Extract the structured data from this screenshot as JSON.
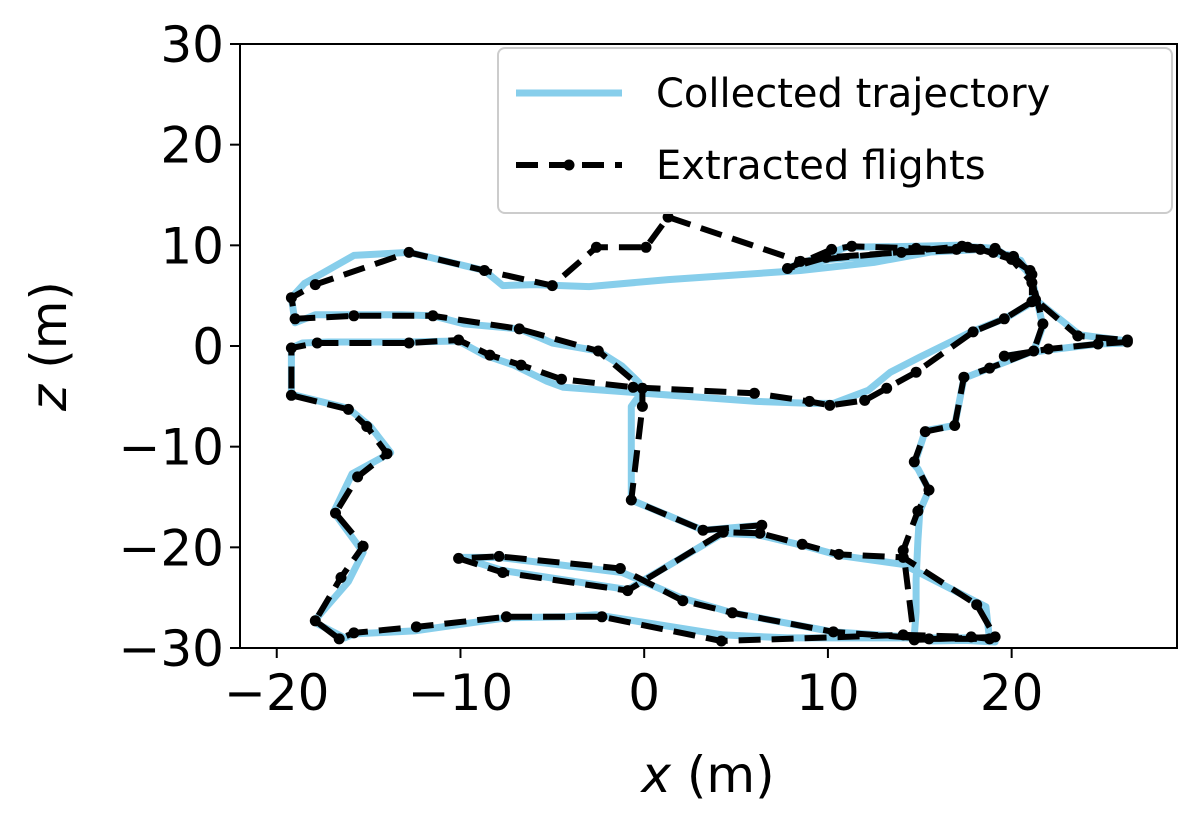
{
  "chart_data": {
    "type": "line",
    "xlabel": "x (m)",
    "ylabel": "z (m)",
    "xlim": [
      -22,
      29
    ],
    "ylim": [
      -30,
      30
    ],
    "xticks": [
      -20,
      -10,
      0,
      10,
      20
    ],
    "yticks": [
      -30,
      -20,
      -10,
      0,
      10,
      20,
      30
    ],
    "xtick_labels": [
      "−20",
      "−10",
      "0",
      "10",
      "20"
    ],
    "ytick_labels": [
      "−30",
      "−20",
      "−10",
      "0",
      "10",
      "20",
      "30"
    ],
    "grid": false,
    "legend_position": "top-right",
    "series": [
      {
        "name": "Collected trajectory",
        "color": "#87ceeb",
        "style": "solid",
        "x": [
          6.4,
          3.2,
          -0.7,
          -0.7,
          -0.7,
          -0.1,
          -0.3,
          -1.2,
          -2.5,
          -5.0,
          -6.8,
          -9.8,
          -11.5,
          -13.2,
          -17.9,
          -19.0,
          -19.2,
          -18.5,
          -15.8,
          -12.8,
          -8.7,
          -7.7,
          -6.0,
          -3.0,
          1.3,
          8.5,
          12.5,
          17.3,
          19.1,
          21.0,
          21.7,
          21.2,
          18.8,
          17.4,
          16.9,
          15.3,
          14.7,
          14.9,
          15.5,
          15.0,
          14.9,
          14.8,
          14.8,
          14.7,
          15.6,
          18.8,
          18.6,
          14.1,
          10.6,
          8.6,
          6.3,
          4.3,
          -0.9,
          -7.7,
          -10.0,
          -7.9,
          -1.2,
          2.0,
          4.8,
          10.3,
          16.0,
          19.1,
          17.9,
          14.5,
          7.8,
          4.3,
          -2.6,
          -4.2,
          -7.5,
          -12.5,
          -15.8,
          -16.3,
          -18.0,
          -16.1,
          -15.3,
          -16.9,
          -15.9,
          -13.8,
          -14.9,
          -16.1,
          -19.2,
          -19.2,
          -18.6,
          -17.2,
          -12.9,
          -10.1,
          -8.7,
          -7.1,
          -5.3,
          -4.4,
          -0.7,
          6.1,
          9.1,
          10.3,
          12.2,
          13.4,
          15.0,
          17.8,
          19.6,
          21.1,
          21.2,
          20.5,
          18.4,
          14.1,
          10.1,
          7.9,
          10.4,
          11.0,
          14.8,
          17.0,
          17.7,
          19.1,
          20.0,
          21.0,
          21.3,
          23.7,
          26.3,
          26.3,
          24.7,
          22.0,
          19.7
        ],
        "y": [
          -17.8,
          -18.3,
          -15.3,
          -9.8,
          -6.0,
          -4.5,
          -3.6,
          -2.0,
          -0.5,
          0.3,
          1.7,
          2.2,
          3.0,
          3.1,
          3.1,
          2.3,
          4.8,
          6.2,
          9.0,
          9.3,
          7.5,
          6.0,
          6.1,
          5.9,
          6.6,
          7.5,
          8.3,
          9.9,
          9.7,
          7.5,
          2.0,
          -0.5,
          -2.2,
          -3.2,
          -7.9,
          -8.4,
          -11.8,
          -12.2,
          -14.3,
          -16.4,
          -19.3,
          -23.2,
          -26.4,
          -28.8,
          -29.3,
          -29.2,
          -25.9,
          -21.7,
          -20.8,
          -19.8,
          -18.8,
          -18.6,
          -24.2,
          -22.3,
          -21.0,
          -21.0,
          -22.5,
          -25.0,
          -26.5,
          -28.4,
          -29.1,
          -29.4,
          -29.0,
          -29.0,
          -29.0,
          -28.7,
          -26.7,
          -26.9,
          -27.0,
          -28.3,
          -28.6,
          -29.0,
          -27.4,
          -23.4,
          -20.5,
          -16.5,
          -12.7,
          -10.6,
          -8.0,
          -6.2,
          -4.8,
          -0.2,
          0.3,
          0.4,
          0.4,
          0.5,
          -0.9,
          -1.9,
          -3.5,
          -4.1,
          -4.6,
          -5.5,
          -5.7,
          -5.7,
          -4.4,
          -2.6,
          -1.1,
          1.4,
          2.7,
          4.3,
          6.2,
          8.5,
          9.6,
          9.2,
          8.6,
          7.8,
          9.4,
          9.8,
          9.9,
          10.0,
          9.9,
          9.3,
          9.0,
          7.1,
          4.6,
          1.1,
          0.5,
          0.3,
          0.2,
          -0.4,
          -1.0
        ]
      },
      {
        "name": "Extracted flights",
        "color": "#000000",
        "style": "dashed",
        "x": [
          6.4,
          3.2,
          -0.7,
          -0.1,
          -0.1,
          -2.5,
          -6.8,
          -11.5,
          -15.8,
          -19.0,
          -19.2,
          -17.9,
          -12.8,
          -8.7,
          -5.0,
          -2.6,
          0.1,
          1.3,
          8.5,
          17.3,
          19.1,
          21.0,
          21.7,
          21.2,
          18.8,
          17.4,
          16.9,
          15.3,
          14.7,
          15.5,
          14.9,
          14.1,
          14.7,
          19.1,
          18.1,
          14.1,
          10.6,
          8.6,
          6.3,
          4.3,
          -0.9,
          -7.7,
          -10.1,
          -7.9,
          -1.3,
          2.1,
          4.8,
          10.3,
          15.5,
          18.8,
          17.8,
          14.1,
          4.2,
          -2.3,
          -7.5,
          -12.4,
          -15.8,
          -16.6,
          -17.9,
          -16.5,
          -15.3,
          -16.8,
          -15.6,
          -14.0,
          -15.1,
          -16.1,
          -19.2,
          -19.2,
          -17.8,
          -12.8,
          -10.1,
          -8.4,
          -6.7,
          -4.5,
          -0.6,
          6.0,
          9.0,
          10.1,
          12.0,
          13.2,
          14.8,
          17.9,
          19.6,
          21.1,
          21.1,
          20.0,
          18.3,
          14.0,
          9.9,
          7.8,
          10.2,
          11.3,
          14.8,
          17.0,
          17.6,
          19.0,
          20.1,
          21.1,
          21.3,
          23.6,
          26.3,
          26.3,
          24.7,
          22.0,
          19.6
        ],
        "y": [
          -17.8,
          -18.3,
          -15.3,
          -6.0,
          -4.2,
          -0.5,
          1.7,
          3.0,
          3.0,
          2.7,
          4.8,
          6.1,
          9.3,
          7.5,
          6.0,
          9.8,
          9.8,
          12.8,
          8.4,
          9.9,
          9.7,
          7.5,
          2.2,
          -0.5,
          -2.2,
          -3.1,
          -7.9,
          -8.5,
          -11.5,
          -14.3,
          -16.4,
          -20.3,
          -29.2,
          -28.9,
          -25.7,
          -21.0,
          -20.7,
          -19.7,
          -18.6,
          -18.5,
          -24.3,
          -22.5,
          -21.1,
          -20.9,
          -22.1,
          -25.3,
          -26.5,
          -28.4,
          -29.1,
          -29.1,
          -28.9,
          -28.7,
          -29.3,
          -26.9,
          -26.9,
          -27.9,
          -28.5,
          -29.1,
          -27.3,
          -23.0,
          -19.9,
          -16.6,
          -13.0,
          -10.7,
          -8.0,
          -6.3,
          -4.9,
          -0.2,
          0.3,
          0.3,
          0.6,
          -0.9,
          -1.9,
          -3.3,
          -4.1,
          -4.7,
          -5.5,
          -5.9,
          -5.4,
          -4.2,
          -2.6,
          1.4,
          2.7,
          4.4,
          6.3,
          8.6,
          9.6,
          9.3,
          8.8,
          7.7,
          9.6,
          9.9,
          9.7,
          9.6,
          9.8,
          9.3,
          8.9,
          7.1,
          4.6,
          1.0,
          0.6,
          0.4,
          0.2,
          -0.3,
          -1.0
        ]
      }
    ]
  }
}
